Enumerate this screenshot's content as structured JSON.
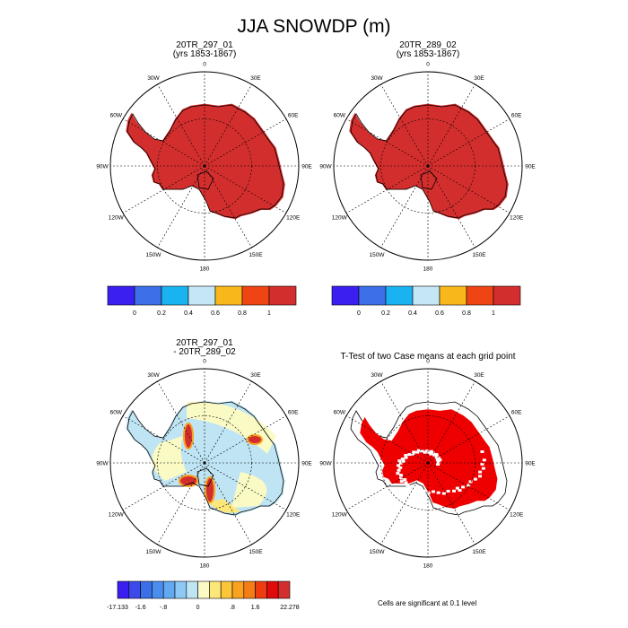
{
  "title": "JJA SNOWDP (m)",
  "panels": [
    {
      "id": "p1",
      "title_lines": [
        "20TR_297_01",
        "(yrs 1853-1867)"
      ]
    },
    {
      "id": "p2",
      "title_lines": [
        "20TR_289_02",
        "(yrs 1853-1867)"
      ]
    },
    {
      "id": "p3",
      "title_lines": [
        "20TR_297_01",
        "- 20TR_289_02"
      ]
    },
    {
      "id": "p4",
      "title_lines": [
        "T-Test of two Case means at each grid point"
      ]
    }
  ],
  "lon_labels": [
    "0",
    "30E",
    "60E",
    "90E",
    "120E",
    "150E",
    "180",
    "150W",
    "120W",
    "90W",
    "60W",
    "30W"
  ],
  "contour_label": "0",
  "colorbar_top": {
    "colors": [
      "#3b1ff0",
      "#3d6fe8",
      "#1ab3f2",
      "#c4e6f5",
      "#f8b81c",
      "#ef4515",
      "#d32e2e"
    ],
    "labels": [
      "0",
      "0.2",
      "0.4",
      "0.6",
      "0.8",
      "1"
    ]
  },
  "colorbar_diff": {
    "colors": [
      "#3b1ff0",
      "#3b4ae8",
      "#3a6fe8",
      "#4a8ef0",
      "#63a9f2",
      "#8ec8f4",
      "#bfe4f3",
      "#fafac5",
      "#fde77a",
      "#fdc63a",
      "#f9a21f",
      "#f57d17",
      "#ed3d10",
      "#e00c0c",
      "#d32e2e"
    ],
    "labels": [
      "-17.133",
      "-1.6",
      "-.8",
      "0",
      ".8",
      "1.6",
      "22.278"
    ]
  },
  "note": "Cells are significant at 0.1 level",
  "colors": {
    "land_fill": "#d32e2e",
    "sig_fill": "#ee0000"
  }
}
